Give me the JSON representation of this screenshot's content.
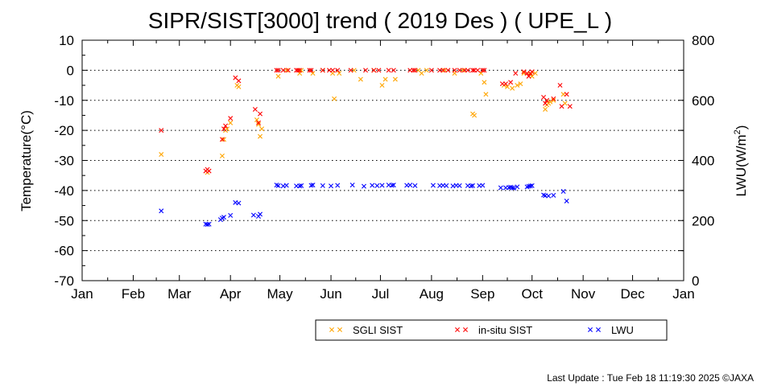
{
  "chart_data": {
    "type": "scatter",
    "title": "SIPR/SIST[3000] trend ( 2019 Des ) ( UPE_L )",
    "ylabel": "Temperature(°C)",
    "y2label_main": "LWU(W/m",
    "y2label_sup": "2",
    "y2label_end": ")",
    "ylim": [
      -70,
      10
    ],
    "y2lim": [
      0,
      800
    ],
    "yticks": [
      "10",
      "0",
      "-10",
      "-20",
      "-30",
      "-40",
      "-50",
      "-60",
      "-70"
    ],
    "y2ticks": [
      "800",
      "600",
      "400",
      "200",
      "0"
    ],
    "y2tick_values": [
      800,
      600,
      400,
      200,
      0
    ],
    "ytick_values": [
      10,
      0,
      -10,
      -20,
      -30,
      -40,
      -50,
      -60,
      -70
    ],
    "xlim_doy": [
      0,
      365
    ],
    "xticks": [
      {
        "label": "Jan",
        "doy": 0
      },
      {
        "label": "Feb",
        "doy": 31
      },
      {
        "label": "Mar",
        "doy": 59
      },
      {
        "label": "Apr",
        "doy": 90
      },
      {
        "label": "May",
        "doy": 120
      },
      {
        "label": "Jun",
        "doy": 151
      },
      {
        "label": "Jul",
        "doy": 181
      },
      {
        "label": "Aug",
        "doy": 212
      },
      {
        "label": "Sep",
        "doy": 243
      },
      {
        "label": "Oct",
        "doy": 273
      },
      {
        "label": "Nov",
        "doy": 304
      },
      {
        "label": "Dec",
        "doy": 334
      },
      {
        "label": "Jan",
        "doy": 365
      }
    ],
    "grid": "horizontal dotted",
    "legend_position": "bottom",
    "series": [
      {
        "name": "SGLI SIST",
        "color": "#ffa500",
        "axis": "left",
        "points": [
          [
            48,
            -28
          ],
          [
            76,
            -34
          ],
          [
            85,
            -28.5
          ],
          [
            86,
            -23
          ],
          [
            87,
            -20
          ],
          [
            88,
            -19.5
          ],
          [
            90,
            -17.5
          ],
          [
            94,
            -5
          ],
          [
            95,
            -5.5
          ],
          [
            106,
            -16.5
          ],
          [
            107,
            -18
          ],
          [
            108,
            -22
          ],
          [
            109,
            -19.5
          ],
          [
            119,
            -2
          ],
          [
            124,
            0
          ],
          [
            132,
            -1
          ],
          [
            133,
            0
          ],
          [
            140,
            -1
          ],
          [
            146,
            0
          ],
          [
            152,
            -1
          ],
          [
            153,
            -9.5
          ],
          [
            156,
            -1
          ],
          [
            165,
            0
          ],
          [
            169,
            -3
          ],
          [
            177,
            0
          ],
          [
            182,
            -5
          ],
          [
            184,
            -3
          ],
          [
            190,
            -3
          ],
          [
            204,
            0
          ],
          [
            206,
            -1
          ],
          [
            209,
            0
          ],
          [
            220,
            0
          ],
          [
            226,
            -1
          ],
          [
            231,
            0
          ],
          [
            237,
            -14.5
          ],
          [
            238,
            -15
          ],
          [
            242,
            -1
          ],
          [
            244,
            -4
          ],
          [
            245,
            -8
          ],
          [
            256,
            -5
          ],
          [
            258,
            -5.5
          ],
          [
            261,
            -6
          ],
          [
            264,
            -5
          ],
          [
            266,
            -4.5
          ],
          [
            268,
            -1
          ],
          [
            272,
            -1.5
          ],
          [
            273,
            -2
          ],
          [
            275,
            -1
          ],
          [
            281,
            -13
          ],
          [
            282,
            -11.5
          ],
          [
            283,
            -11
          ],
          [
            284,
            -10.5
          ],
          [
            286,
            -10
          ],
          [
            292,
            -8
          ],
          [
            293,
            -11
          ]
        ]
      },
      {
        "name": "in-situ SIST",
        "color": "#ff0000",
        "axis": "left",
        "points": [
          [
            48,
            -20
          ],
          [
            75,
            -33.5
          ],
          [
            76,
            -33
          ],
          [
            77,
            -33.5
          ],
          [
            85,
            -23
          ],
          [
            86,
            -19.5
          ],
          [
            87,
            -18.5
          ],
          [
            90,
            -16
          ],
          [
            93,
            -2.5
          ],
          [
            95,
            -3.5
          ],
          [
            105,
            -13
          ],
          [
            107,
            -17.5
          ],
          [
            108,
            -14.5
          ],
          [
            118,
            0
          ],
          [
            119,
            0
          ],
          [
            122,
            0
          ],
          [
            125,
            0
          ],
          [
            130,
            0
          ],
          [
            131,
            0
          ],
          [
            132,
            0
          ],
          [
            138,
            0
          ],
          [
            139,
            0
          ],
          [
            146,
            0
          ],
          [
            150,
            0
          ],
          [
            152,
            0
          ],
          [
            155,
            0
          ],
          [
            163,
            0
          ],
          [
            172,
            0
          ],
          [
            177,
            0
          ],
          [
            180,
            0
          ],
          [
            186,
            0
          ],
          [
            189,
            0
          ],
          [
            199,
            0
          ],
          [
            201,
            0
          ],
          [
            202,
            0
          ],
          [
            212,
            0
          ],
          [
            217,
            0
          ],
          [
            219,
            0
          ],
          [
            222,
            0
          ],
          [
            226,
            0
          ],
          [
            229,
            0
          ],
          [
            232,
            0
          ],
          [
            234,
            0
          ],
          [
            237,
            0
          ],
          [
            238,
            0
          ],
          [
            240,
            0
          ],
          [
            243,
            0
          ],
          [
            244,
            0
          ],
          [
            255,
            -4.5
          ],
          [
            257,
            -4.5
          ],
          [
            260,
            -4
          ],
          [
            263,
            -1
          ],
          [
            268,
            -0.5
          ],
          [
            270,
            -1
          ],
          [
            271,
            -2
          ],
          [
            272,
            -1
          ],
          [
            273,
            -0.5
          ],
          [
            280,
            -9
          ],
          [
            281,
            -11
          ],
          [
            282,
            -10
          ],
          [
            286,
            -9.5
          ],
          [
            290,
            -5
          ],
          [
            291,
            -12
          ],
          [
            294,
            -8
          ],
          [
            296,
            -12
          ]
        ]
      },
      {
        "name": "LWU",
        "color": "#0000ff",
        "axis": "right",
        "points": [
          [
            48,
            232
          ],
          [
            75,
            188
          ],
          [
            76,
            187
          ],
          [
            77,
            188
          ],
          [
            84,
            203
          ],
          [
            85,
            208
          ],
          [
            86,
            211
          ],
          [
            90,
            217
          ],
          [
            93,
            260
          ],
          [
            95,
            258
          ],
          [
            104,
            218
          ],
          [
            107,
            214
          ],
          [
            108,
            221
          ],
          [
            118,
            318
          ],
          [
            119,
            316
          ],
          [
            122,
            315
          ],
          [
            124,
            317
          ],
          [
            130,
            315
          ],
          [
            132,
            315
          ],
          [
            133,
            316
          ],
          [
            139,
            317
          ],
          [
            140,
            318
          ],
          [
            146,
            316
          ],
          [
            151,
            315
          ],
          [
            155,
            317
          ],
          [
            164,
            318
          ],
          [
            171,
            314
          ],
          [
            176,
            317
          ],
          [
            179,
            316
          ],
          [
            182,
            317
          ],
          [
            186,
            318
          ],
          [
            188,
            317
          ],
          [
            189,
            318
          ],
          [
            197,
            317
          ],
          [
            199,
            318
          ],
          [
            202,
            316
          ],
          [
            213,
            317
          ],
          [
            217,
            316
          ],
          [
            219,
            317
          ],
          [
            221,
            316
          ],
          [
            225,
            315
          ],
          [
            227,
            317
          ],
          [
            229,
            316
          ],
          [
            234,
            316
          ],
          [
            236,
            315
          ],
          [
            237,
            316
          ],
          [
            241,
            316
          ],
          [
            243,
            317
          ],
          [
            254,
            309
          ],
          [
            257,
            309
          ],
          [
            259,
            310
          ],
          [
            260,
            311
          ],
          [
            261,
            309
          ],
          [
            262,
            308
          ],
          [
            264,
            312
          ],
          [
            270,
            312
          ],
          [
            271,
            314
          ],
          [
            272,
            315
          ],
          [
            273,
            316
          ],
          [
            280,
            285
          ],
          [
            281,
            283
          ],
          [
            283,
            282
          ],
          [
            286,
            284
          ],
          [
            292,
            297
          ],
          [
            294,
            265
          ]
        ]
      }
    ]
  },
  "footer": {
    "last_update": "Last Update : Tue Feb 18 11:19:30 2025  ©JAXA"
  }
}
